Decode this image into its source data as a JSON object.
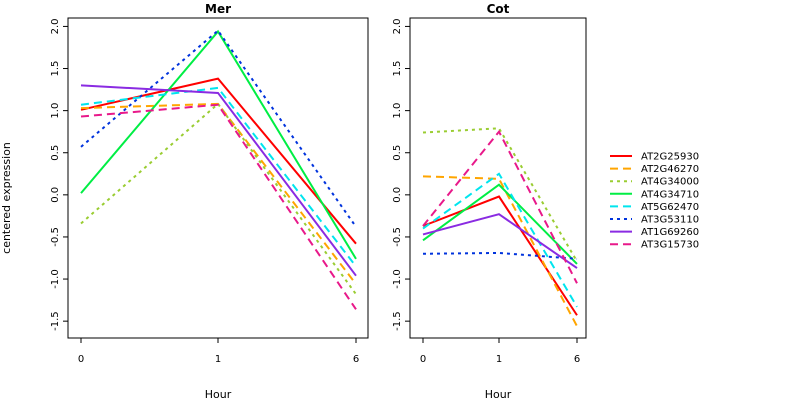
{
  "chart_data": {
    "type": "line",
    "ylabel": "centered expression",
    "xlabel": "Hour",
    "x_categories": [
      "0",
      "1",
      "6"
    ],
    "ylim": [
      -1.7,
      2.1
    ],
    "y_ticks": [
      -1.5,
      -1.0,
      -0.5,
      0.0,
      0.5,
      1.0,
      1.5,
      2.0
    ],
    "y_tick_labels": [
      "-1.5",
      "-1.0",
      "-0.5",
      "0.0",
      "0.5",
      "1.0",
      "1.5",
      "2.0"
    ],
    "legend_position": "right",
    "panels": [
      {
        "title": "Mer",
        "series": [
          {
            "name": "AT2G25930",
            "values": [
              1.01,
              1.38,
              -0.58
            ]
          },
          {
            "name": "AT2G46270",
            "values": [
              1.03,
              1.08,
              -1.06
            ]
          },
          {
            "name": "AT4G34000",
            "values": [
              -0.34,
              1.08,
              -1.18
            ]
          },
          {
            "name": "AT4G34710",
            "values": [
              0.02,
              1.94,
              -0.76
            ]
          },
          {
            "name": "AT5G62470",
            "values": [
              1.07,
              1.27,
              -0.85
            ]
          },
          {
            "name": "AT3G53110",
            "values": [
              0.57,
              1.95,
              -0.38
            ]
          },
          {
            "name": "AT1G69260",
            "values": [
              1.3,
              1.21,
              -0.96
            ]
          },
          {
            "name": "AT3G15730",
            "values": [
              0.93,
              1.07,
              -1.36
            ]
          }
        ]
      },
      {
        "title": "Cot",
        "series": [
          {
            "name": "AT2G25930",
            "values": [
              -0.37,
              -0.02,
              -1.43
            ]
          },
          {
            "name": "AT2G46270",
            "values": [
              0.22,
              0.19,
              -1.56
            ]
          },
          {
            "name": "AT4G34000",
            "values": [
              0.74,
              0.79,
              -0.79
            ]
          },
          {
            "name": "AT4G34710",
            "values": [
              -0.54,
              0.12,
              -0.82
            ]
          },
          {
            "name": "AT5G62470",
            "values": [
              -0.4,
              0.25,
              -1.33
            ]
          },
          {
            "name": "AT3G53110",
            "values": [
              -0.7,
              -0.69,
              -0.76
            ]
          },
          {
            "name": "AT1G69260",
            "values": [
              -0.47,
              -0.23,
              -0.87
            ]
          },
          {
            "name": "AT3G15730",
            "values": [
              -0.37,
              0.75,
              -1.05
            ]
          }
        ]
      }
    ],
    "series_styles": [
      {
        "name": "AT2G25930",
        "color": "#ff0000",
        "dash": "solid"
      },
      {
        "name": "AT2G46270",
        "color": "#ffa500",
        "dash": "dashed"
      },
      {
        "name": "AT4G34000",
        "color": "#9acd32",
        "dash": "dotted"
      },
      {
        "name": "AT4G34710",
        "color": "#00ee44",
        "dash": "solid"
      },
      {
        "name": "AT5G62470",
        "color": "#00e5ee",
        "dash": "dashed"
      },
      {
        "name": "AT3G53110",
        "color": "#0033dd",
        "dash": "dotted"
      },
      {
        "name": "AT1G69260",
        "color": "#8a2be2",
        "dash": "solid"
      },
      {
        "name": "AT3G15730",
        "color": "#e8198a",
        "dash": "dashed"
      }
    ]
  }
}
